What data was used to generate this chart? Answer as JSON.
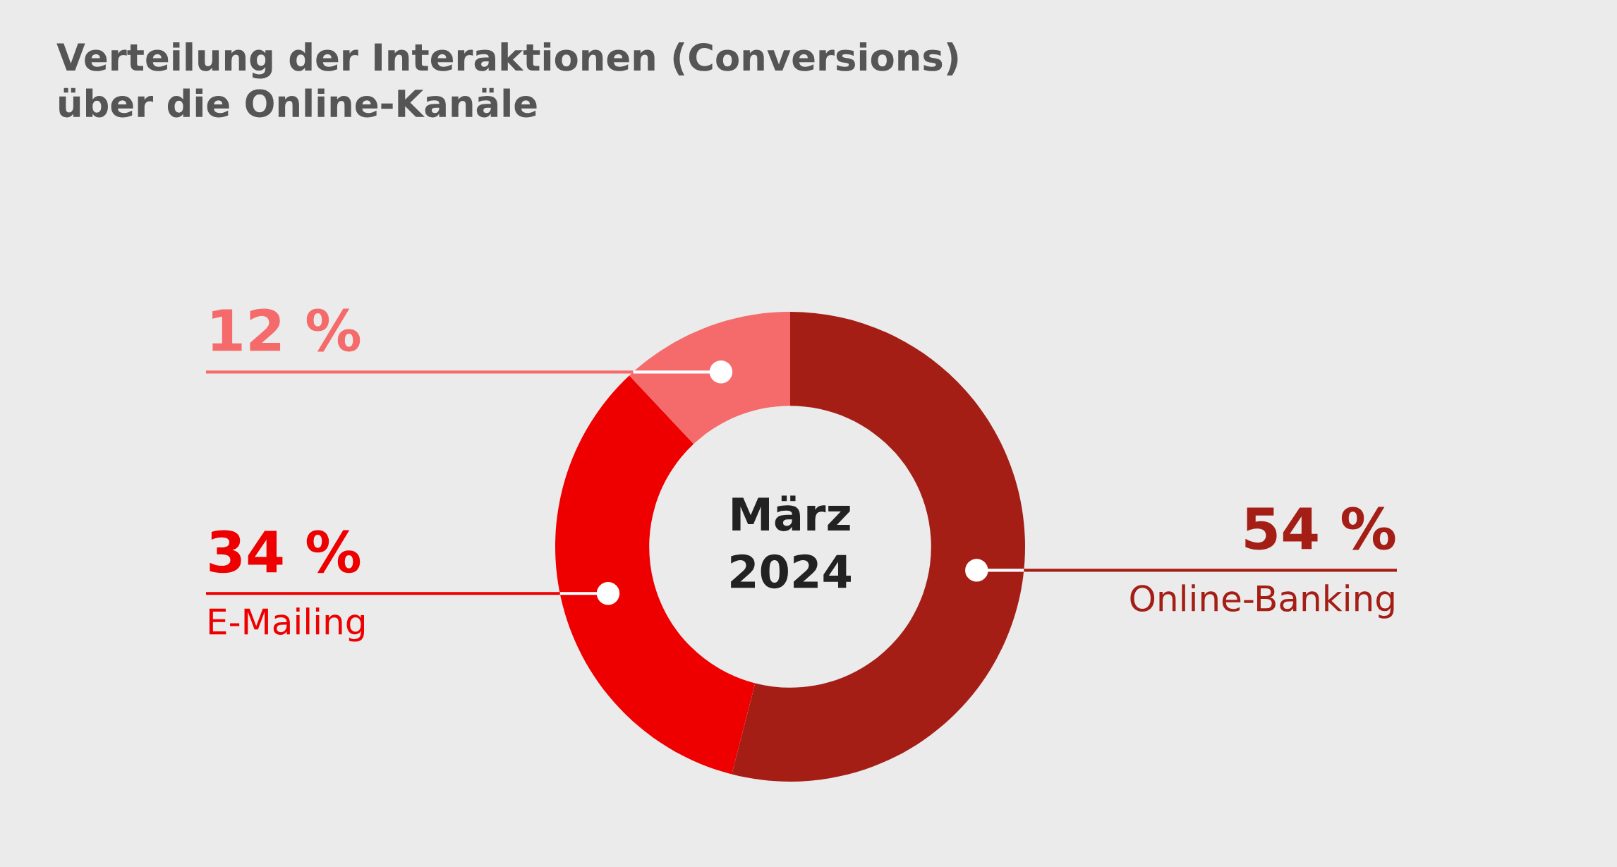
{
  "chart_data": {
    "type": "donut",
    "title": "Verteilung der Interaktionen (Conversions)\nüber die Online-Kanäle",
    "categories": [
      "Online-Banking",
      "E-Mailing",
      null
    ],
    "values": [
      54,
      34,
      12
    ],
    "value_labels": [
      "54 %",
      "34 %",
      "12 %"
    ],
    "colors": [
      "#a51e16",
      "#ee0000",
      "#f56a6a"
    ],
    "annotations": [
      "März\n2024"
    ]
  }
}
